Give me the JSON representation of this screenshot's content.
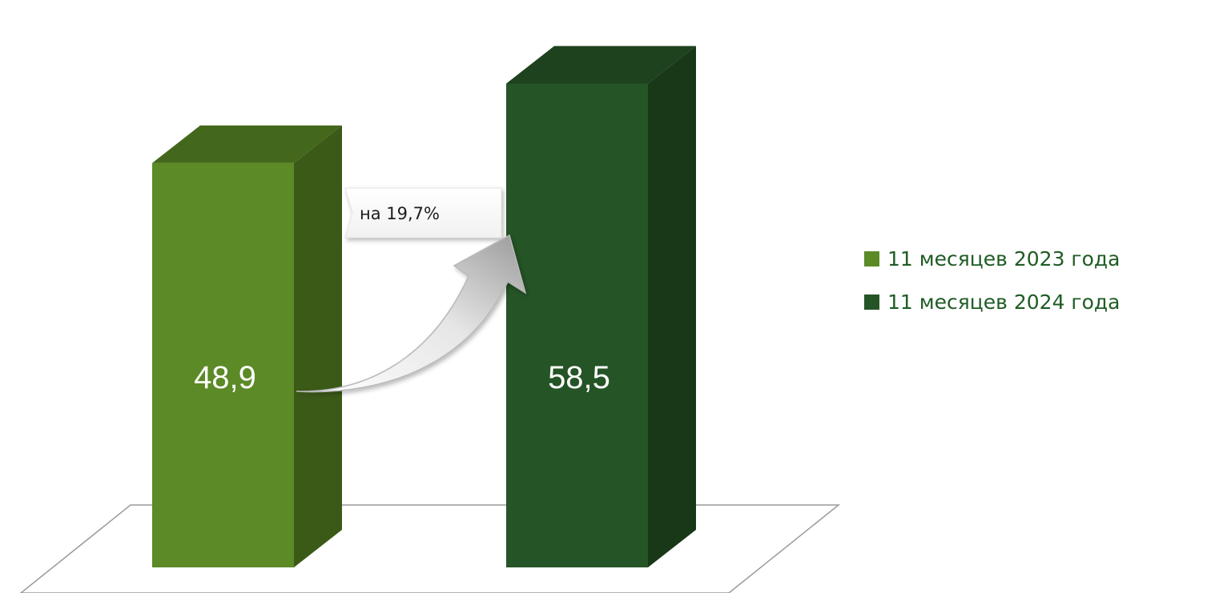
{
  "chart_data": {
    "type": "bar",
    "categories": [
      "11 месяцев 2023 года",
      "11 месяцев 2024 года"
    ],
    "values": [
      48.9,
      58.5
    ],
    "value_labels": [
      "48,9",
      "58,5"
    ],
    "colors": [
      "#5b8a26",
      "#255426"
    ],
    "side_colors": [
      "#3b5a18",
      "#183818"
    ],
    "top_colors": [
      "#43681c",
      "#1d421d"
    ],
    "title": "",
    "xlabel": "",
    "ylabel": "",
    "ylim": [
      0,
      63
    ],
    "grid": false,
    "legend_position": "right",
    "three_d": true,
    "annotation": {
      "text": "на 19,7%",
      "from": 0,
      "to": 1
    }
  }
}
